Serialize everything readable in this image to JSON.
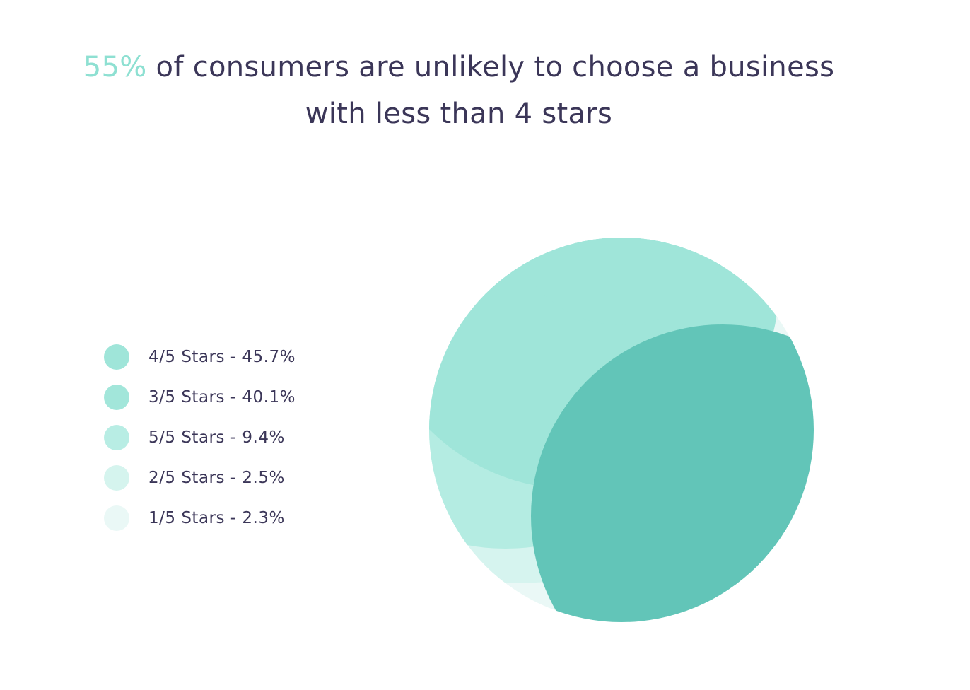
{
  "title": {
    "highlight": "55%",
    "line1_rest": " of consumers are unlikely to choose a business",
    "line2": "with less than 4 stars"
  },
  "chart_data": {
    "type": "pie",
    "title": "55% of consumers are unlikely to choose a business with less than 4 stars",
    "categories": [
      "4/5 Stars",
      "3/5 Stars",
      "5/5 Stars",
      "2/5 Stars",
      "1/5 Stars"
    ],
    "values": [
      45.7,
      40.1,
      9.4,
      2.5,
      2.3
    ],
    "unit": "%",
    "legend_placement": "left",
    "legend": [
      {
        "label": "4/5 Stars - 45.7%",
        "color": "#9fe5d9"
      },
      {
        "label": "3/5 Stars - 40.1%",
        "color": "#a2e6da"
      },
      {
        "label": "5/5 Stars - 9.4%",
        "color": "#b8ede4"
      },
      {
        "label": "2/5 Stars - 2.5%",
        "color": "#d5f4ee"
      },
      {
        "label": "1/5 Stars - 2.3%",
        "color": "#eaf8f6"
      }
    ],
    "slice_colors": {
      "4/5 Stars": "#62c5b8",
      "3/5 Stars": "#9fe5d9",
      "5/5 Stars": "#b4ece2",
      "2/5 Stars": "#d6f4ef",
      "1/5 Stars": "#eaf8f6"
    }
  }
}
